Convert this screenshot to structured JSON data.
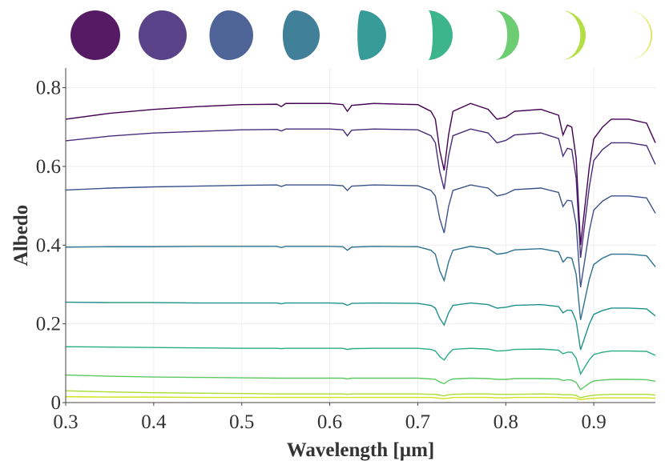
{
  "chart_data": {
    "type": "line",
    "x_label": "Wavelength [µm]",
    "y_label": "Albedo",
    "x": [
      0.3,
      0.35,
      0.4,
      0.45,
      0.5,
      0.54,
      0.545,
      0.55,
      0.6,
      0.615,
      0.62,
      0.625,
      0.65,
      0.7,
      0.715,
      0.72,
      0.725,
      0.73,
      0.735,
      0.74,
      0.76,
      0.78,
      0.79,
      0.8,
      0.81,
      0.84,
      0.86,
      0.865,
      0.87,
      0.875,
      0.88,
      0.885,
      0.89,
      0.895,
      0.9,
      0.91,
      0.92,
      0.94,
      0.96,
      0.97
    ],
    "series": [
      {
        "color": "#440154",
        "values": [
          0.72,
          0.735,
          0.745,
          0.752,
          0.757,
          0.758,
          0.752,
          0.76,
          0.76,
          0.757,
          0.74,
          0.755,
          0.76,
          0.757,
          0.74,
          0.72,
          0.64,
          0.59,
          0.68,
          0.74,
          0.76,
          0.745,
          0.72,
          0.725,
          0.74,
          0.745,
          0.73,
          0.68,
          0.705,
          0.7,
          0.62,
          0.4,
          0.5,
          0.6,
          0.67,
          0.7,
          0.72,
          0.72,
          0.71,
          0.66
        ]
      },
      {
        "color": "#472d7b",
        "values": [
          0.665,
          0.677,
          0.685,
          0.689,
          0.693,
          0.694,
          0.69,
          0.695,
          0.695,
          0.693,
          0.678,
          0.692,
          0.695,
          0.693,
          0.678,
          0.66,
          0.587,
          0.542,
          0.626,
          0.678,
          0.695,
          0.685,
          0.66,
          0.666,
          0.68,
          0.685,
          0.671,
          0.626,
          0.646,
          0.643,
          0.57,
          0.368,
          0.459,
          0.549,
          0.615,
          0.643,
          0.66,
          0.66,
          0.653,
          0.605
        ]
      },
      {
        "color": "#3b528b",
        "values": [
          0.54,
          0.545,
          0.548,
          0.55,
          0.552,
          0.553,
          0.549,
          0.553,
          0.553,
          0.551,
          0.539,
          0.55,
          0.553,
          0.551,
          0.539,
          0.525,
          0.467,
          0.431,
          0.498,
          0.539,
          0.553,
          0.545,
          0.525,
          0.53,
          0.541,
          0.545,
          0.534,
          0.498,
          0.514,
          0.512,
          0.453,
          0.293,
          0.365,
          0.437,
          0.489,
          0.512,
          0.525,
          0.525,
          0.52,
          0.481
        ]
      },
      {
        "color": "#2c728e",
        "values": [
          0.395,
          0.396,
          0.396,
          0.397,
          0.397,
          0.397,
          0.394,
          0.397,
          0.397,
          0.396,
          0.387,
          0.395,
          0.397,
          0.396,
          0.387,
          0.377,
          0.335,
          0.31,
          0.357,
          0.387,
          0.397,
          0.391,
          0.377,
          0.38,
          0.388,
          0.391,
          0.383,
          0.357,
          0.369,
          0.367,
          0.326,
          0.21,
          0.262,
          0.314,
          0.351,
          0.367,
          0.377,
          0.377,
          0.373,
          0.345
        ]
      },
      {
        "color": "#21918c",
        "values": [
          0.255,
          0.254,
          0.254,
          0.253,
          0.253,
          0.253,
          0.251,
          0.253,
          0.253,
          0.252,
          0.247,
          0.252,
          0.253,
          0.252,
          0.247,
          0.24,
          0.214,
          0.197,
          0.228,
          0.247,
          0.253,
          0.249,
          0.24,
          0.242,
          0.247,
          0.249,
          0.244,
          0.228,
          0.235,
          0.234,
          0.207,
          0.134,
          0.167,
          0.2,
          0.224,
          0.234,
          0.24,
          0.24,
          0.238,
          0.22
        ]
      },
      {
        "color": "#27ad81",
        "values": [
          0.142,
          0.141,
          0.14,
          0.139,
          0.138,
          0.138,
          0.137,
          0.138,
          0.138,
          0.138,
          0.135,
          0.137,
          0.138,
          0.138,
          0.135,
          0.131,
          0.117,
          0.108,
          0.124,
          0.135,
          0.138,
          0.136,
          0.131,
          0.132,
          0.135,
          0.136,
          0.133,
          0.124,
          0.128,
          0.128,
          0.113,
          0.073,
          0.091,
          0.109,
          0.122,
          0.128,
          0.131,
          0.131,
          0.13,
          0.12
        ]
      },
      {
        "color": "#5cc863",
        "values": [
          0.07,
          0.067,
          0.065,
          0.064,
          0.063,
          0.062,
          0.062,
          0.062,
          0.062,
          0.062,
          0.06,
          0.062,
          0.062,
          0.062,
          0.06,
          0.059,
          0.052,
          0.048,
          0.056,
          0.06,
          0.062,
          0.061,
          0.059,
          0.059,
          0.061,
          0.061,
          0.06,
          0.056,
          0.058,
          0.057,
          0.051,
          0.033,
          0.041,
          0.049,
          0.055,
          0.057,
          0.059,
          0.059,
          0.058,
          0.054
        ]
      },
      {
        "color": "#aadc32",
        "values": [
          0.03,
          0.027,
          0.025,
          0.024,
          0.023,
          0.022,
          0.022,
          0.022,
          0.022,
          0.022,
          0.021,
          0.022,
          0.022,
          0.022,
          0.021,
          0.021,
          0.019,
          0.017,
          0.02,
          0.021,
          0.022,
          0.022,
          0.021,
          0.021,
          0.021,
          0.022,
          0.021,
          0.02,
          0.02,
          0.02,
          0.018,
          0.012,
          0.015,
          0.017,
          0.019,
          0.02,
          0.021,
          0.021,
          0.021,
          0.019
        ]
      },
      {
        "color": "#d2e21b",
        "values": [
          0.015,
          0.014,
          0.014,
          0.013,
          0.013,
          0.013,
          0.013,
          0.013,
          0.013,
          0.013,
          0.013,
          0.013,
          0.013,
          0.013,
          0.013,
          0.012,
          0.011,
          0.01,
          0.011,
          0.013,
          0.013,
          0.013,
          0.012,
          0.012,
          0.013,
          0.013,
          0.013,
          0.012,
          0.012,
          0.012,
          0.011,
          0.007,
          0.009,
          0.01,
          0.011,
          0.012,
          0.012,
          0.012,
          0.012,
          0.011
        ]
      }
    ],
    "xlim": [
      0.3,
      0.97
    ],
    "ylim": [
      0,
      0.85
    ],
    "xticks": [
      0.3,
      0.4,
      0.5,
      0.6,
      0.7,
      0.8,
      0.9
    ],
    "yticks": [
      0,
      0.2,
      0.4,
      0.6,
      0.8
    ],
    "grid": true
  }
}
